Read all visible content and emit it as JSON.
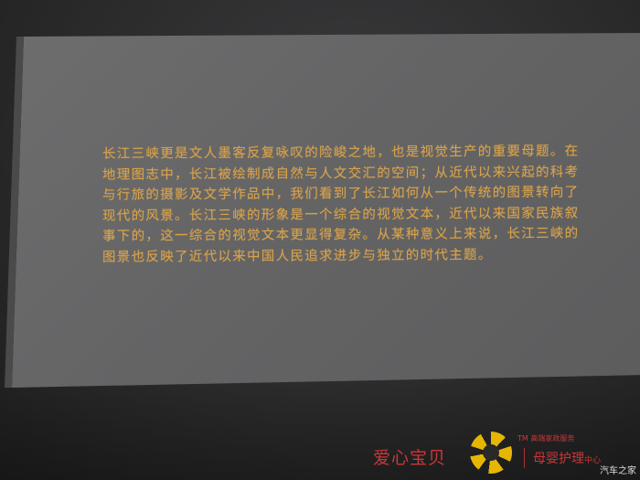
{
  "plaque": {
    "lines": [
      "长江三峡更是文人墨客反复咏叹的险峻之地，也是视觉生产的重要母题。在",
      "地理图志中，长江被绘制成自然与人文交汇的空间；从近代以来兴起的科考",
      "与行旅的摄影及文学作品中，我们看到了长江如何从一个传统的图景转向了",
      "现代的风景。长江三峡的形象是一个综合的视觉文本，近代以来国家民族叙",
      "事下的，这一综合的视觉文本更显得复杂。从某种意义上来说，长江三峡的",
      "图景也反映了近代以来中国人民追求进步与独立的时代主题。"
    ],
    "text_color": "#d9a24a"
  },
  "watermark": {
    "brand": "爱心宝贝",
    "tm": "TM 高端家政服务",
    "tagline": "母婴护理",
    "tagline_suffix": "中心",
    "site": "汽车之家",
    "accent_color": "#e83c3c",
    "logo_color": "#f7c400",
    "logo_icon": "sun-ring-logo"
  }
}
